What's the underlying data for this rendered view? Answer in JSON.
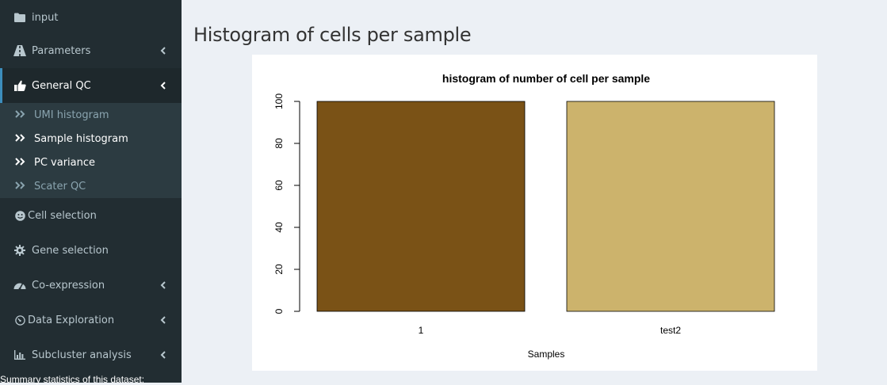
{
  "sidebar": {
    "items": [
      {
        "label": "input",
        "icon": "folder-icon",
        "has_chevron": false
      },
      {
        "label": "Parameters",
        "icon": "road-icon",
        "has_chevron": true
      },
      {
        "label": "General QC",
        "icon": "thumbs-up-icon",
        "has_chevron": true,
        "active": true
      },
      {
        "label": "Cell selection",
        "icon": "smile-icon",
        "has_chevron": false
      },
      {
        "label": "Gene selection",
        "icon": "cog-icon",
        "has_chevron": false
      },
      {
        "label": "Co-expression",
        "icon": "dashboard-icon",
        "has_chevron": true
      },
      {
        "label": "Data Exploration",
        "icon": "gauge-icon",
        "has_chevron": true
      },
      {
        "label": "Subcluster analysis",
        "icon": "bar-chart-icon",
        "has_chevron": true
      }
    ],
    "submenu": [
      {
        "label": "UMI histogram"
      },
      {
        "label": "Sample histogram",
        "selected": true
      },
      {
        "label": "PC variance"
      },
      {
        "label": "Scater QC"
      }
    ],
    "summary_text": "Summary statistics of this dataset:"
  },
  "main": {
    "title": "Histogram of cells per sample"
  },
  "chart_data": {
    "type": "bar",
    "title": "histogram of number of cell per sample",
    "xlabel": "Samples",
    "ylabel": "",
    "categories": [
      "1",
      "test2"
    ],
    "values": [
      100,
      100
    ],
    "colors": [
      "#7a5216",
      "#ccb36c"
    ],
    "ylim": [
      0,
      100
    ],
    "yticks": [
      0,
      20,
      40,
      60,
      80,
      100
    ],
    "grid": false,
    "legend": "none"
  }
}
